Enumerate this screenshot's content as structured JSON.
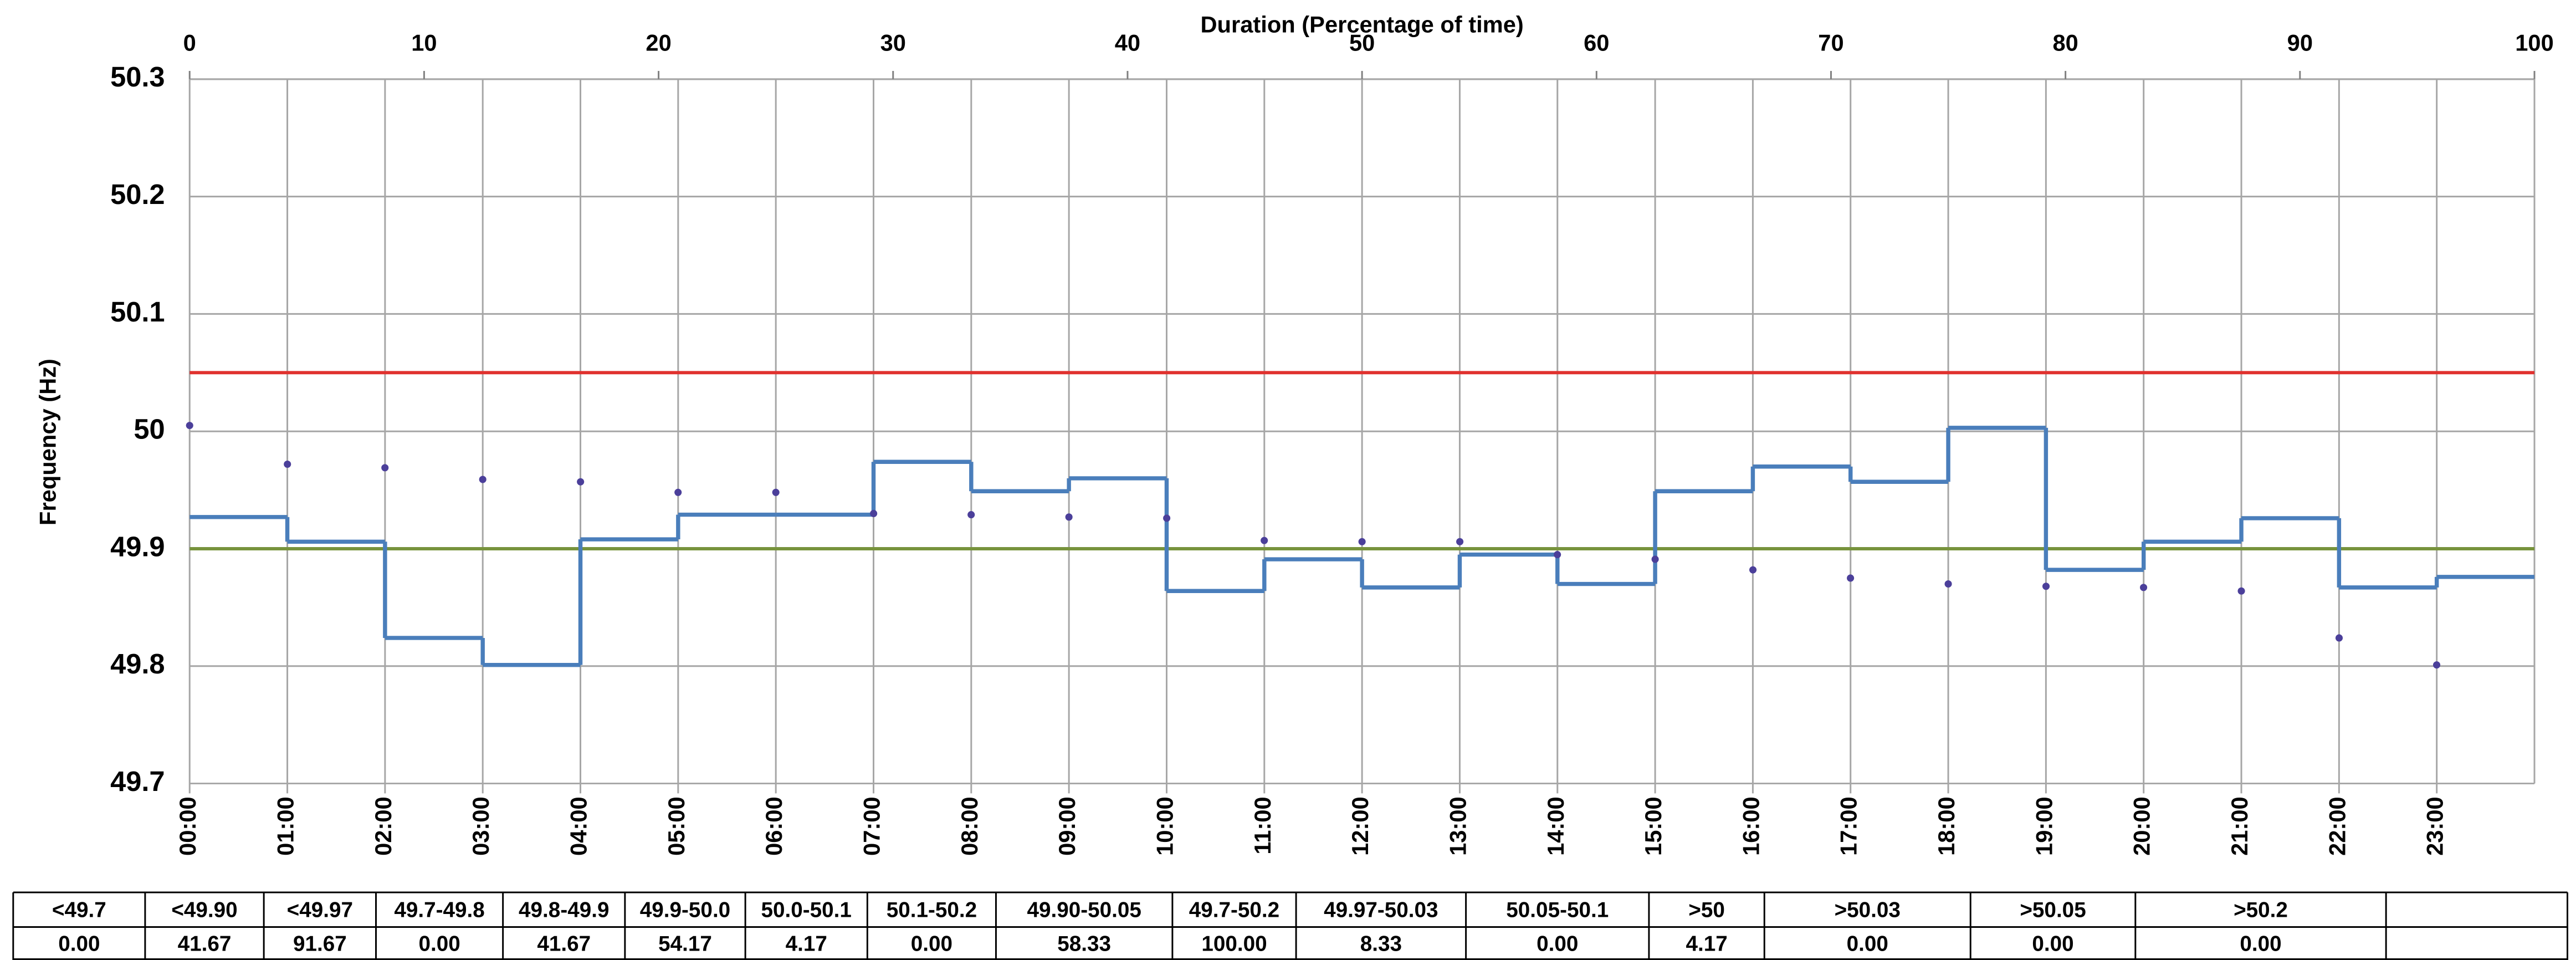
{
  "chart_data": {
    "type": "step",
    "title": "Duration (Percentage of time)",
    "y_label": "Frequency (Hz)",
    "categories": [
      "00:00",
      "01:00",
      "02:00",
      "03:00",
      "04:00",
      "05:00",
      "06:00",
      "07:00",
      "08:00",
      "09:00",
      "10:00",
      "11:00",
      "12:00",
      "13:00",
      "14:00",
      "15:00",
      "16:00",
      "17:00",
      "18:00",
      "19:00",
      "20:00",
      "21:00",
      "22:00",
      "23:00"
    ],
    "values": [
      49.927,
      49.906,
      49.824,
      49.801,
      49.908,
      49.929,
      49.929,
      49.974,
      49.949,
      49.96,
      49.864,
      49.891,
      49.867,
      49.895,
      49.87,
      49.949,
      49.97,
      49.957,
      50.003,
      49.882,
      49.906,
      49.926,
      49.867,
      49.876
    ],
    "color": "#4a7ebb",
    "duration": {
      "x": [
        0,
        4.17,
        8.33,
        12.5,
        16.67,
        20.83,
        25,
        29.17,
        33.33,
        37.5,
        41.67,
        45.83,
        50,
        54.17,
        58.33,
        62.5,
        66.67,
        70.83,
        75,
        79.17,
        83.33,
        87.5,
        91.67,
        95.83
      ],
      "values": [
        50.005,
        49.972,
        49.969,
        49.959,
        49.957,
        49.948,
        49.948,
        49.93,
        49.929,
        49.927,
        49.926,
        49.907,
        49.906,
        49.906,
        49.895,
        49.891,
        49.882,
        49.875,
        49.87,
        49.868,
        49.867,
        49.864,
        49.824,
        49.801
      ],
      "color": "#4b3f9a"
    },
    "reference_lines": [
      {
        "value": 50.05,
        "color": "#e0312e"
      },
      {
        "value": 49.9,
        "color": "#77933c"
      }
    ],
    "ylim": [
      49.7,
      50.3
    ],
    "yticks": [
      49.7,
      49.8,
      49.9,
      50,
      50.1,
      50.2,
      50.3
    ],
    "x2lim": [
      0,
      100
    ],
    "x2ticks": [
      0,
      10,
      20,
      30,
      40,
      50,
      60,
      70,
      80,
      90,
      100
    ],
    "grid": true
  },
  "table": {
    "headers": [
      "<49.7",
      "<49.90",
      "<49.97",
      "49.7-49.8",
      "49.8-49.9",
      "49.9-50.0",
      "50.0-50.1",
      "50.1-50.2",
      "49.90-50.05",
      "49.7-50.2",
      "49.97-50.03",
      "50.05-50.1",
      ">50",
      ">50.03",
      ">50.05",
      ">50.2"
    ],
    "values": [
      "0.00",
      "41.67",
      "91.67",
      "0.00",
      "41.67",
      "54.17",
      "4.17",
      "0.00",
      "58.33",
      "100.00",
      "8.33",
      "0.00",
      "4.17",
      "0.00",
      "0.00",
      "0.00"
    ]
  }
}
